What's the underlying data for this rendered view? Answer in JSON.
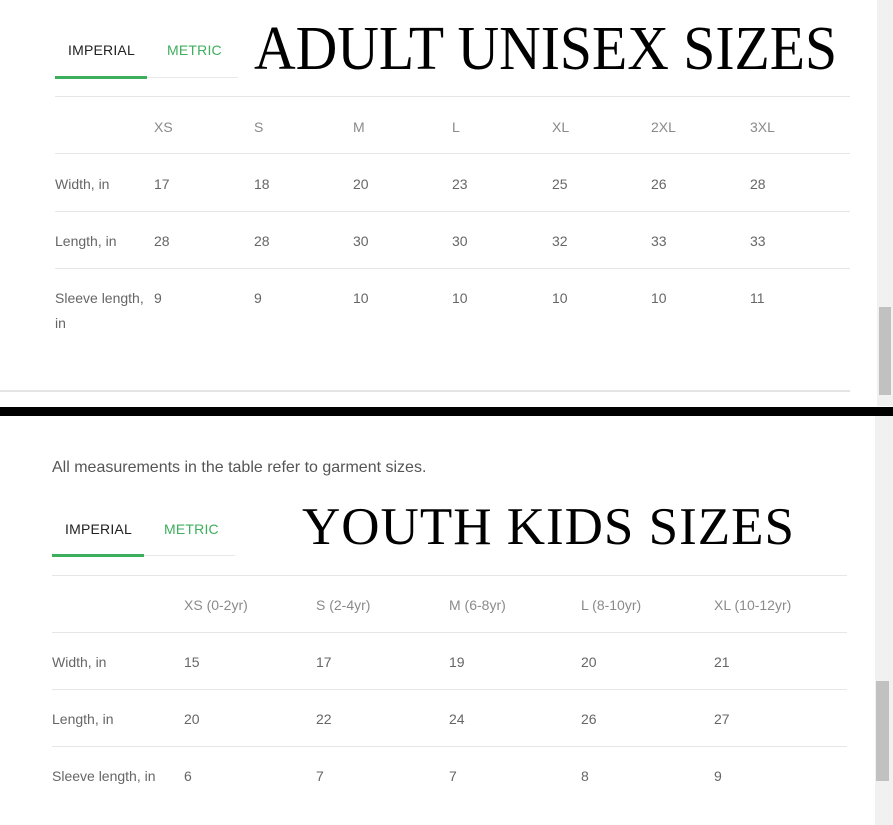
{
  "colors": {
    "accent": "#3dae5c",
    "divider": "#000000"
  },
  "adult": {
    "title": "ADULT UNISEX SIZES",
    "tabs": [
      {
        "label": "IMPERIAL",
        "active": true
      },
      {
        "label": "METRIC",
        "active": false
      }
    ],
    "columns": [
      "XS",
      "S",
      "M",
      "L",
      "XL",
      "2XL",
      "3XL"
    ],
    "rows": [
      {
        "label": "Width, in",
        "values": [
          "17",
          "18",
          "20",
          "23",
          "25",
          "26",
          "28"
        ]
      },
      {
        "label": "Length, in",
        "values": [
          "28",
          "28",
          "30",
          "30",
          "32",
          "33",
          "33"
        ]
      },
      {
        "label": "Sleeve length, in",
        "values": [
          "9",
          "9",
          "10",
          "10",
          "10",
          "10",
          "11"
        ]
      }
    ]
  },
  "youth": {
    "note": "All measurements in the table refer to garment sizes.",
    "title": "YOUTH KIDS SIZES",
    "tabs": [
      {
        "label": "IMPERIAL",
        "active": true
      },
      {
        "label": "METRIC",
        "active": false
      }
    ],
    "columns": [
      "XS (0-2yr)",
      "S (2-4yr)",
      "M (6-8yr)",
      "L (8-10yr)",
      "XL (10-12yr)"
    ],
    "rows": [
      {
        "label": "Width, in",
        "values": [
          "15",
          "17",
          "19",
          "20",
          "21"
        ]
      },
      {
        "label": "Length, in",
        "values": [
          "20",
          "22",
          "24",
          "26",
          "27"
        ]
      },
      {
        "label": "Sleeve length, in",
        "values": [
          "6",
          "7",
          "7",
          "8",
          "9"
        ]
      }
    ]
  }
}
